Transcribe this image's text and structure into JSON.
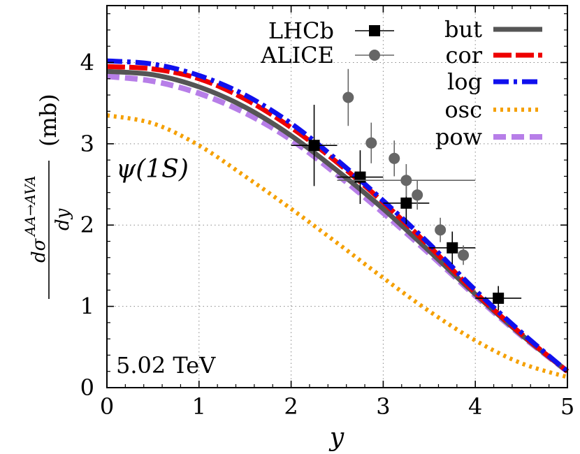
{
  "chart_data": {
    "type": "line",
    "xlabel": "y",
    "ylabel": {
      "numerator": "dσ",
      "superscript": "AA→AVA",
      "denominator": "dy",
      "unit": "(mb)"
    },
    "xlim": [
      0,
      5
    ],
    "ylim": [
      0,
      4.7
    ],
    "xticks": [
      "0",
      "1",
      "2",
      "3",
      "4",
      "5"
    ],
    "yticks": [
      "0",
      "1",
      "2",
      "3",
      "4"
    ],
    "grid": true,
    "legend_position": "top-right",
    "annotations": {
      "particle": "ψ(1S)",
      "energy": "5.02 TeV"
    },
    "data_series": [
      {
        "name": "LHCb",
        "marker": "square",
        "color": "#000000",
        "points": [
          {
            "x": 2.25,
            "y": 2.98,
            "xerr": 0.25,
            "yerr": 0.5
          },
          {
            "x": 2.75,
            "y": 2.59,
            "xerr": 0.25,
            "yerr": 0.33
          },
          {
            "x": 3.25,
            "y": 2.27,
            "xerr": 0.25,
            "yerr": 0.26
          },
          {
            "x": 3.75,
            "y": 1.72,
            "xerr": 0.25,
            "yerr": 0.2
          },
          {
            "x": 4.25,
            "y": 1.1,
            "xerr": 0.25,
            "yerr": 0.15
          }
        ]
      },
      {
        "name": "ALICE",
        "marker": "circle",
        "color": "#666666",
        "points": [
          {
            "x": 2.62,
            "y": 3.57,
            "xerr": 0.0,
            "yerr": 0.35
          },
          {
            "x": 2.87,
            "y": 3.01,
            "xerr": 0.0,
            "yerr": 0.25
          },
          {
            "x": 3.12,
            "y": 2.82,
            "xerr": 0.0,
            "yerr": 0.22
          },
          {
            "x": 3.25,
            "y": 2.55,
            "xerr": 0.75,
            "yerr": 0.2
          },
          {
            "x": 3.37,
            "y": 2.37,
            "xerr": 0.0,
            "yerr": 0.18
          },
          {
            "x": 3.62,
            "y": 1.94,
            "xerr": 0.0,
            "yerr": 0.15
          },
          {
            "x": 3.87,
            "y": 1.63,
            "xerr": 0.0,
            "yerr": 0.12
          }
        ]
      }
    ],
    "curve_series": [
      {
        "name": "but",
        "color": "#555555",
        "dash": "solid",
        "x": [
          0,
          0.5,
          1,
          1.5,
          2,
          2.5,
          3,
          3.5,
          4,
          4.5,
          5
        ],
        "y": [
          3.89,
          3.85,
          3.7,
          3.45,
          3.1,
          2.67,
          2.2,
          1.68,
          1.15,
          0.65,
          0.2
        ]
      },
      {
        "name": "cor",
        "color": "#ee0000",
        "dash": "long",
        "x": [
          0,
          0.5,
          1,
          1.5,
          2,
          2.5,
          3,
          3.5,
          4,
          4.5,
          5
        ],
        "y": [
          3.95,
          3.92,
          3.8,
          3.55,
          3.2,
          2.77,
          2.28,
          1.74,
          1.17,
          0.66,
          0.2
        ]
      },
      {
        "name": "log",
        "color": "#1010ee",
        "dash": "dashdot",
        "x": [
          0,
          0.5,
          1,
          1.5,
          2,
          2.5,
          3,
          3.5,
          4,
          4.5,
          5
        ],
        "y": [
          4.02,
          3.98,
          3.84,
          3.6,
          3.25,
          2.8,
          2.3,
          1.77,
          1.2,
          0.68,
          0.2
        ]
      },
      {
        "name": "osc",
        "color": "#f5a000",
        "dash": "dotted",
        "x": [
          0,
          0.5,
          1,
          1.5,
          2,
          2.5,
          3,
          3.5,
          4,
          4.5,
          5
        ],
        "y": [
          3.35,
          3.25,
          2.98,
          2.6,
          2.2,
          1.78,
          1.35,
          0.94,
          0.58,
          0.3,
          0.13
        ]
      },
      {
        "name": "pow",
        "color": "#b77ee8",
        "dash": "dashed",
        "x": [
          0,
          0.5,
          1,
          1.5,
          2,
          2.5,
          3,
          3.5,
          4,
          4.5,
          5
        ],
        "y": [
          3.83,
          3.77,
          3.62,
          3.38,
          3.05,
          2.62,
          2.15,
          1.65,
          1.13,
          0.64,
          0.2
        ]
      }
    ]
  }
}
